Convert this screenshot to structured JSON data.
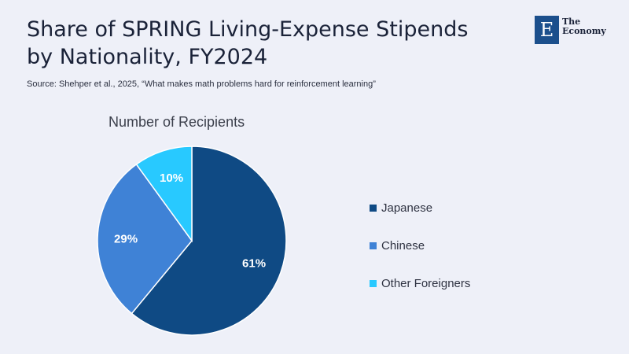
{
  "header": {
    "title": "Share of SPRING Living-Expense Stipends by Nationality, FY2024",
    "source": "Source:  Shehper et al., 2025, “What makes math problems hard for reinforcement learning”"
  },
  "logo": {
    "mark": "E",
    "line1": "The",
    "line2": "Economy"
  },
  "chart_data": {
    "type": "pie",
    "title": "Number of Recipients",
    "start_angle": "top",
    "direction": "clockwise",
    "legend_position": "right",
    "categories": [
      "Japanese",
      "Chinese",
      "Other Foreigners"
    ],
    "values": [
      61,
      29,
      10
    ],
    "labels": [
      "61%",
      "29%",
      "10%"
    ],
    "colors": [
      "#0f4a84",
      "#3f82d6",
      "#28c9ff"
    ]
  }
}
